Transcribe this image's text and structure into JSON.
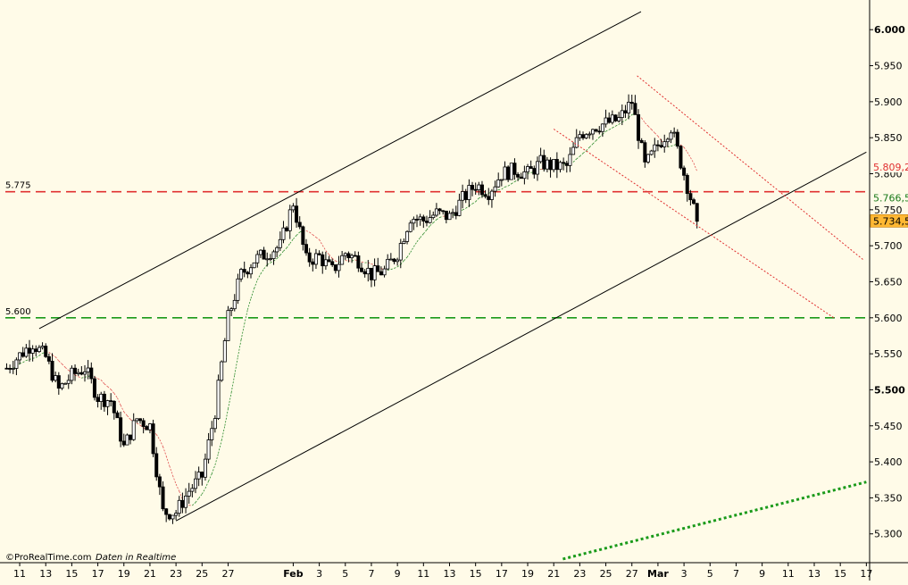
{
  "chart_data": {
    "type": "candlestick",
    "title": "",
    "xlabel": "",
    "ylabel": "",
    "ylim": [
      5.26,
      6.035
    ],
    "y_ticks": [
      "6.000",
      "5.950",
      "5.900",
      "5.850",
      "5.800",
      "5.750",
      "5.700",
      "5.650",
      "5.600",
      "5.550",
      "5.500",
      "5.450",
      "5.400",
      "5.350",
      "5.300"
    ],
    "y_ticks_bold": [
      "6.000",
      "5.500"
    ],
    "x_ticks": [
      {
        "label": "11",
        "day": 11
      },
      {
        "label": "13",
        "day": 13
      },
      {
        "label": "15",
        "day": 15
      },
      {
        "label": "17",
        "day": 17
      },
      {
        "label": "19",
        "day": 19
      },
      {
        "label": "21",
        "day": 21
      },
      {
        "label": "23",
        "day": 23
      },
      {
        "label": "25",
        "day": 25
      },
      {
        "label": "27",
        "day": 27
      },
      {
        "label": "Feb",
        "day": 32,
        "month": true
      },
      {
        "label": "3",
        "day": 34
      },
      {
        "label": "5",
        "day": 36
      },
      {
        "label": "7",
        "day": 38
      },
      {
        "label": "9",
        "day": 40
      },
      {
        "label": "11",
        "day": 42
      },
      {
        "label": "13",
        "day": 44
      },
      {
        "label": "15",
        "day": 46
      },
      {
        "label": "17",
        "day": 48
      },
      {
        "label": "19",
        "day": 50
      },
      {
        "label": "21",
        "day": 52
      },
      {
        "label": "23",
        "day": 54
      },
      {
        "label": "25",
        "day": 56
      },
      {
        "label": "27",
        "day": 58
      },
      {
        "label": "Mar",
        "day": 60,
        "month": true
      },
      {
        "label": "3",
        "day": 62
      },
      {
        "label": "5",
        "day": 64
      },
      {
        "label": "7",
        "day": 66
      },
      {
        "label": "9",
        "day": 68
      },
      {
        "label": "11",
        "day": 70
      },
      {
        "label": "13",
        "day": 72
      },
      {
        "label": "15",
        "day": 74
      },
      {
        "label": "17",
        "day": 76
      }
    ],
    "x_domain": [
      9.9,
      76.25
    ],
    "daily_closes": [
      {
        "day": 10,
        "close": 5.53
      },
      {
        "day": 11,
        "close": 5.548
      },
      {
        "day": 12,
        "close": 5.565
      },
      {
        "day": 13,
        "close": 5.545
      },
      {
        "day": 14,
        "close": 5.5
      },
      {
        "day": 15,
        "close": 5.52
      },
      {
        "day": 16,
        "close": 5.53
      },
      {
        "day": 17,
        "close": 5.49
      },
      {
        "day": 18,
        "close": 5.485
      },
      {
        "day": 19,
        "close": 5.42
      },
      {
        "day": 20,
        "close": 5.46
      },
      {
        "day": 21,
        "close": 5.45
      },
      {
        "day": 22,
        "close": 5.33
      },
      {
        "day": 23,
        "close": 5.33
      },
      {
        "day": 24,
        "close": 5.36
      },
      {
        "day": 25,
        "close": 5.38
      },
      {
        "day": 26,
        "close": 5.47
      },
      {
        "day": 27,
        "close": 5.6
      },
      {
        "day": 28,
        "close": 5.66
      },
      {
        "day": 29,
        "close": 5.68
      },
      {
        "day": 30,
        "close": 5.69
      },
      {
        "day": 31,
        "close": 5.7
      },
      {
        "day": 32,
        "close": 5.76
      },
      {
        "day": 33,
        "close": 5.68
      },
      {
        "day": 34,
        "close": 5.685
      },
      {
        "day": 35,
        "close": 5.665
      },
      {
        "day": 36,
        "close": 5.69
      },
      {
        "day": 37,
        "close": 5.68
      },
      {
        "day": 38,
        "close": 5.66
      },
      {
        "day": 39,
        "close": 5.665
      },
      {
        "day": 40,
        "close": 5.69
      },
      {
        "day": 41,
        "close": 5.74
      },
      {
        "day": 42,
        "close": 5.735
      },
      {
        "day": 43,
        "close": 5.745
      },
      {
        "day": 44,
        "close": 5.74
      },
      {
        "day": 45,
        "close": 5.765
      },
      {
        "day": 46,
        "close": 5.785
      },
      {
        "day": 47,
        "close": 5.775
      },
      {
        "day": 48,
        "close": 5.8
      },
      {
        "day": 49,
        "close": 5.805
      },
      {
        "day": 50,
        "close": 5.8
      },
      {
        "day": 51,
        "close": 5.815
      },
      {
        "day": 52,
        "close": 5.81
      },
      {
        "day": 53,
        "close": 5.81
      },
      {
        "day": 54,
        "close": 5.855
      },
      {
        "day": 55,
        "close": 5.865
      },
      {
        "day": 56,
        "close": 5.87
      },
      {
        "day": 57,
        "close": 5.875
      },
      {
        "day": 58,
        "close": 5.9
      },
      {
        "day": 59,
        "close": 5.81
      },
      {
        "day": 60,
        "close": 5.84
      },
      {
        "day": 61,
        "close": 5.865
      },
      {
        "day": 62,
        "close": 5.8
      },
      {
        "day": 63,
        "close": 5.734
      }
    ],
    "overlays": [
      {
        "kind": "channel-upper",
        "style": "solid",
        "color": "#000000",
        "points": [
          [
            12.5,
            5.585
          ],
          [
            58.7,
            6.025
          ]
        ]
      },
      {
        "kind": "channel-lower",
        "style": "solid",
        "color": "#000000",
        "points": [
          [
            23,
            5.318
          ],
          [
            76,
            5.83
          ]
        ]
      },
      {
        "kind": "resistance-channel-upper",
        "style": "dotted",
        "color": "#e03030",
        "points": [
          [
            58.4,
            5.936
          ],
          [
            75.8,
            5.68
          ]
        ]
      },
      {
        "kind": "resistance-channel-lower",
        "style": "dotted",
        "color": "#e03030",
        "points": [
          [
            52,
            5.862
          ],
          [
            73.5,
            5.6
          ]
        ]
      },
      {
        "kind": "support-trend",
        "style": "dotted-thick",
        "color": "#1a9a1a",
        "points": [
          [
            52.7,
            5.265
          ],
          [
            76,
            5.372
          ]
        ]
      }
    ],
    "horizontal_lines": [
      {
        "value": 5.775,
        "label": "5.775",
        "color": "#e03030",
        "style": "dashed"
      },
      {
        "value": 5.6,
        "label": "5.600",
        "color": "#1a9a1a",
        "style": "dashed"
      }
    ],
    "price_markers": [
      {
        "value": 5.8092,
        "label": "5.809,2",
        "style": "red-text"
      },
      {
        "value": 5.7665,
        "label": "5.766,5",
        "style": "green-text"
      },
      {
        "value": 5.7345,
        "label": "5.734,5",
        "style": "orange-box"
      }
    ],
    "grid": false,
    "legend": "none",
    "credit": {
      "brand": "©ProRealTime.com",
      "note": "Daten in Realtime"
    }
  }
}
